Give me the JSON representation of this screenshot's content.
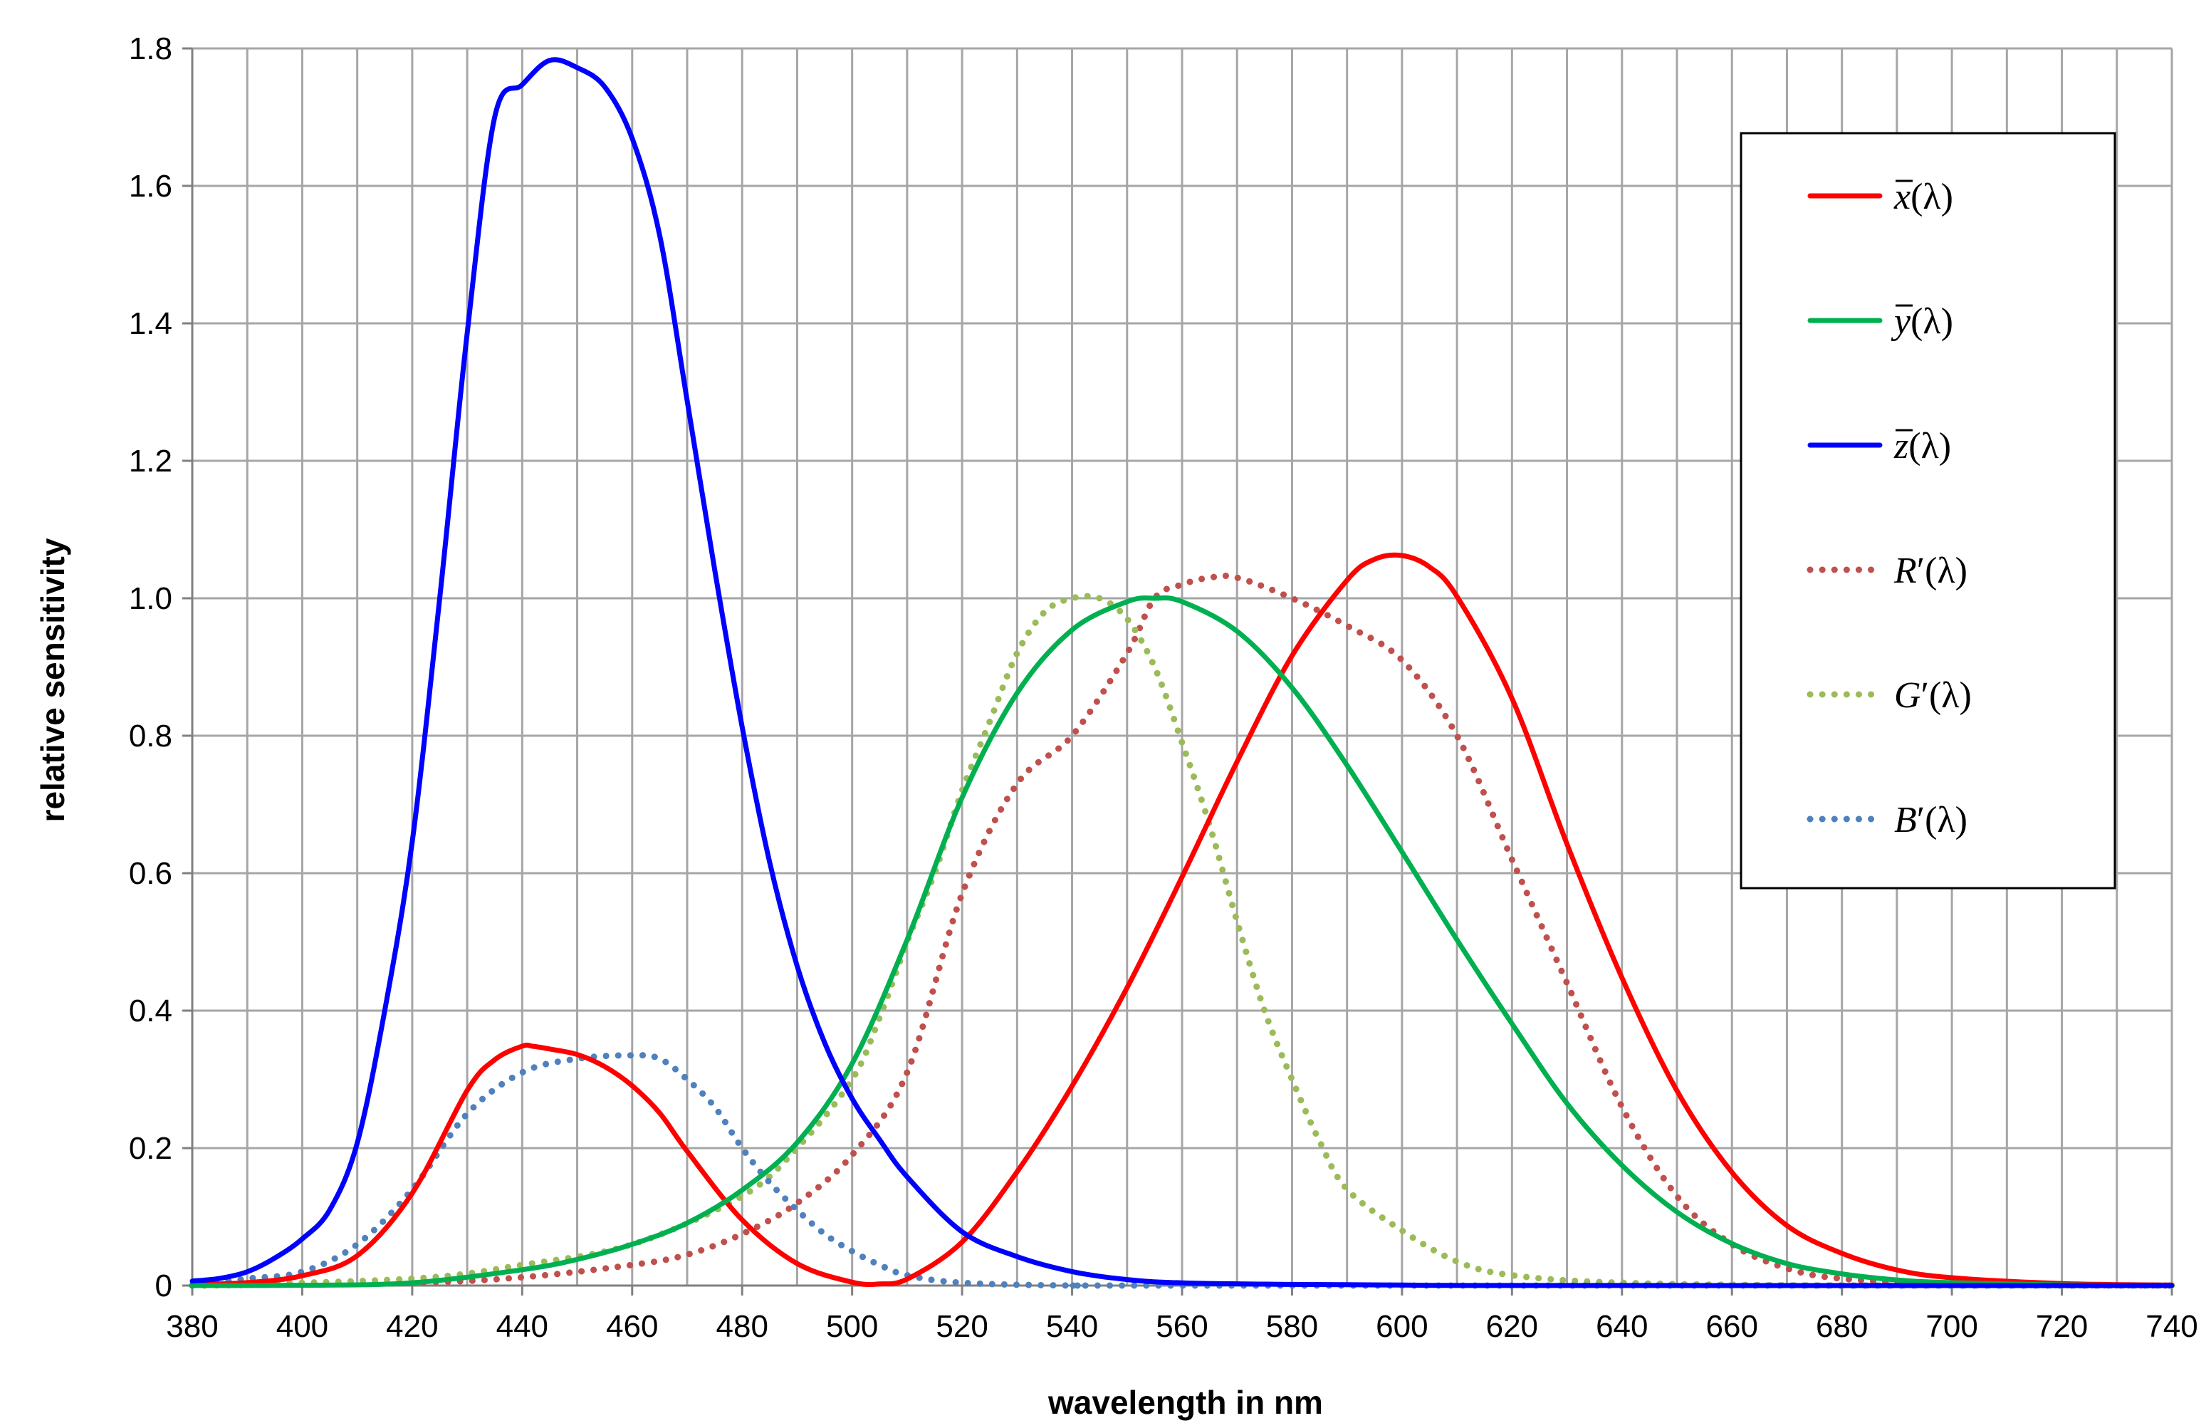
{
  "chart_data": {
    "type": "line",
    "title": "",
    "xlabel": "wavelength in nm",
    "ylabel": "relative sensitivity",
    "xlim": [
      380,
      740
    ],
    "ylim": [
      0,
      1.8
    ],
    "grid": true,
    "legend_position": "top-right",
    "x_ticks": [
      "380",
      "400",
      "420",
      "440",
      "460",
      "480",
      "500",
      "520",
      "540",
      "560",
      "580",
      "600",
      "620",
      "640",
      "660",
      "680",
      "700",
      "720",
      "740"
    ],
    "y_ticks": [
      "0",
      "0.2",
      "0.4",
      "0.6",
      "0.8",
      "1.0",
      "1.2",
      "1.4",
      "1.6",
      "1.8"
    ],
    "x_tick_values": [
      380,
      400,
      420,
      440,
      460,
      480,
      500,
      520,
      540,
      560,
      580,
      600,
      620,
      640,
      660,
      680,
      700,
      720,
      740
    ],
    "y_tick_values": [
      0,
      0.2,
      0.4,
      0.6,
      0.8,
      1.0,
      1.2,
      1.4,
      1.6,
      1.8
    ],
    "series": [
      {
        "id": "xbar",
        "legend": {
          "base": "x",
          "bar": true,
          "prime": false,
          "arg": "(λ)"
        },
        "color": "#FF0000",
        "style": "solid",
        "x": [
          380,
          390,
          400,
          410,
          420,
          430,
          435,
          440,
          442,
          445,
          450,
          455,
          460,
          465,
          470,
          480,
          490,
          500,
          505,
          510,
          520,
          530,
          540,
          550,
          560,
          570,
          580,
          590,
          595,
          600,
          605,
          610,
          620,
          630,
          640,
          650,
          660,
          670,
          680,
          690,
          700,
          720,
          740
        ],
        "values": [
          0.00137,
          0.00424,
          0.0143,
          0.0435,
          0.1344,
          0.2839,
          0.3285,
          0.3483,
          0.3481,
          0.3442,
          0.3362,
          0.3187,
          0.2908,
          0.2511,
          0.1954,
          0.0956,
          0.032,
          0.0049,
          0.0024,
          0.0093,
          0.0633,
          0.1655,
          0.2904,
          0.4334,
          0.5945,
          0.7621,
          0.9163,
          1.0263,
          1.0567,
          1.0622,
          1.0456,
          1.0026,
          0.8544,
          0.6424,
          0.4479,
          0.2835,
          0.1649,
          0.0874,
          0.0468,
          0.0227,
          0.0114,
          0.0029,
          0.0007
        ]
      },
      {
        "id": "ybar",
        "legend": {
          "base": "y",
          "bar": true,
          "prime": false,
          "arg": "(λ)"
        },
        "color": "#00B050",
        "style": "solid",
        "x": [
          380,
          400,
          420,
          440,
          450,
          460,
          470,
          480,
          490,
          500,
          510,
          520,
          530,
          540,
          550,
          555,
          560,
          570,
          580,
          590,
          600,
          610,
          620,
          630,
          640,
          650,
          660,
          670,
          680,
          690,
          700,
          720,
          740
        ],
        "values": [
          0.0,
          0.0004,
          0.004,
          0.023,
          0.038,
          0.06,
          0.091,
          0.139,
          0.208,
          0.323,
          0.503,
          0.71,
          0.862,
          0.954,
          0.995,
          1.0,
          0.995,
          0.952,
          0.87,
          0.757,
          0.631,
          0.503,
          0.381,
          0.265,
          0.175,
          0.107,
          0.061,
          0.032,
          0.017,
          0.0082,
          0.0041,
          0.001,
          0.00025
        ]
      },
      {
        "id": "zbar",
        "legend": {
          "base": "z",
          "bar": true,
          "prime": false,
          "arg": "(λ)"
        },
        "color": "#0000FF",
        "style": "solid",
        "x": [
          380,
          385,
          390,
          395,
          400,
          405,
          410,
          415,
          420,
          425,
          430,
          435,
          440,
          445,
          450,
          455,
          460,
          465,
          470,
          475,
          480,
          485,
          490,
          495,
          500,
          505,
          510,
          520,
          530,
          540,
          550,
          560,
          580,
          600,
          620,
          740
        ],
        "values": [
          0.0065,
          0.0105,
          0.0201,
          0.04,
          0.0679,
          0.1102,
          0.2074,
          0.4,
          0.6456,
          1.0,
          1.3856,
          1.7,
          1.7471,
          1.7826,
          1.772,
          1.7441,
          1.6692,
          1.5281,
          1.2876,
          1.0419,
          0.813,
          0.6162,
          0.4652,
          0.3533,
          0.272,
          0.2123,
          0.1582,
          0.0782,
          0.0422,
          0.0203,
          0.0087,
          0.0039,
          0.0017,
          0.0008,
          0.0001,
          0.0
        ]
      },
      {
        "id": "rprime",
        "legend": {
          "base": "R",
          "bar": false,
          "prime": true,
          "arg": "(λ)"
        },
        "color": "#C0504D",
        "style": "dotted",
        "x": [
          380,
          420,
          440,
          460,
          470,
          480,
          490,
          500,
          510,
          520,
          530,
          540,
          550,
          555,
          560,
          565,
          570,
          580,
          590,
          600,
          610,
          620,
          630,
          640,
          650,
          660,
          670,
          680,
          700,
          740
        ],
        "values": [
          0.0,
          0.004,
          0.012,
          0.03,
          0.045,
          0.075,
          0.12,
          0.19,
          0.31,
          0.57,
          0.73,
          0.8,
          0.92,
          1.0,
          1.02,
          1.03,
          1.03,
          1.0,
          0.96,
          0.91,
          0.8,
          0.62,
          0.44,
          0.26,
          0.13,
          0.06,
          0.025,
          0.01,
          0.002,
          0.0
        ]
      },
      {
        "id": "gprime",
        "legend": {
          "base": "G",
          "bar": false,
          "prime": true,
          "arg": "(λ)"
        },
        "color": "#9BBB59",
        "style": "dotted",
        "x": [
          380,
          420,
          440,
          460,
          480,
          490,
          500,
          505,
          510,
          515,
          520,
          525,
          530,
          535,
          540,
          545,
          550,
          555,
          560,
          565,
          570,
          575,
          580,
          585,
          590,
          600,
          610,
          620,
          640,
          680,
          740
        ],
        "values": [
          0.0,
          0.01,
          0.03,
          0.06,
          0.13,
          0.2,
          0.3,
          0.39,
          0.5,
          0.6,
          0.72,
          0.82,
          0.92,
          0.98,
          1.0,
          1.0,
          0.97,
          0.9,
          0.79,
          0.67,
          0.53,
          0.4,
          0.3,
          0.21,
          0.14,
          0.08,
          0.035,
          0.015,
          0.004,
          0.0,
          0.0
        ]
      },
      {
        "id": "bprime",
        "legend": {
          "base": "B",
          "bar": false,
          "prime": true,
          "arg": "(λ)"
        },
        "color": "#4F81BD",
        "style": "dotted",
        "x": [
          380,
          390,
          400,
          410,
          420,
          430,
          440,
          450,
          460,
          465,
          470,
          475,
          480,
          485,
          490,
          495,
          500,
          505,
          510,
          520,
          540,
          560,
          740
        ],
        "values": [
          0.0,
          0.01,
          0.02,
          0.06,
          0.14,
          0.25,
          0.31,
          0.33,
          0.335,
          0.33,
          0.3,
          0.26,
          0.2,
          0.15,
          0.11,
          0.075,
          0.05,
          0.03,
          0.015,
          0.004,
          0.0,
          0.0,
          0.0
        ]
      }
    ]
  }
}
